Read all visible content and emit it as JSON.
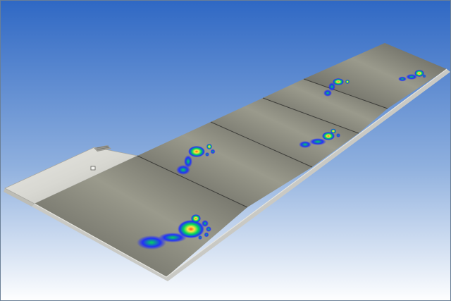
{
  "scene": {
    "subject": "pressure-sensing-walkway",
    "plate_count": 5,
    "footprint_count": 5,
    "colors": {
      "sky_top": "#2f68c4",
      "sky_mid": "#8fb0de",
      "sky_bottom": "#ffffff",
      "plate_dark": "#5b5b55",
      "plate_light": "#9a9a8c",
      "platform_metal": "#d8d8d2",
      "pressure_low": "#1d2bff",
      "pressure_mid": "#00d85a",
      "pressure_high": "#ffe640",
      "pressure_peak": "#ff5020"
    },
    "icons": [
      "connector-port-icon",
      "vent-grille-icon"
    ]
  }
}
